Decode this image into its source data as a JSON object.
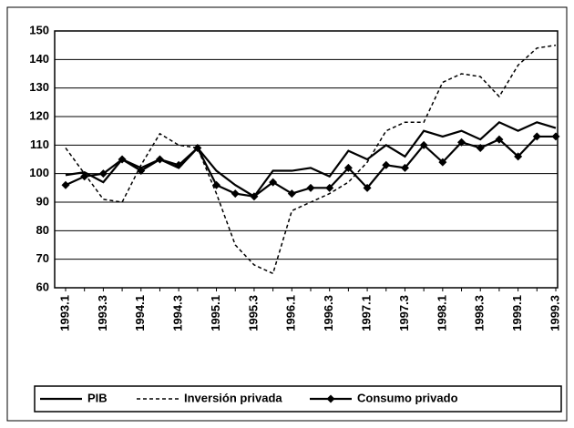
{
  "chart_data": {
    "type": "line",
    "categories": [
      "1993.1",
      null,
      "1993.3",
      null,
      "1994.1",
      null,
      "1994.3",
      null,
      "1995.1",
      null,
      "1995.3",
      null,
      "1996.1",
      null,
      "1996.3",
      null,
      "1997.1",
      null,
      "1997.3",
      null,
      "1998.1",
      null,
      "1998.3",
      null,
      "1999.1",
      null,
      "1999.3"
    ],
    "series": [
      {
        "name": "PIB",
        "color": "#000000",
        "style": "solid",
        "marker": "none",
        "values": [
          99.5,
          100.5,
          97,
          105,
          102,
          105,
          102,
          109,
          101,
          96,
          92,
          101,
          101,
          102,
          99,
          108,
          105,
          110,
          106,
          115,
          113,
          115,
          112,
          118,
          115,
          118,
          116
        ]
      },
      {
        "name": "Inversión privada",
        "color": "#000000",
        "style": "dashed",
        "marker": "none",
        "values": [
          109,
          100,
          91,
          90,
          103,
          114,
          110,
          109,
          93,
          75,
          68,
          65,
          87,
          90,
          93,
          97,
          104,
          115,
          118,
          118,
          132,
          135,
          134,
          127,
          138,
          144,
          145
        ]
      },
      {
        "name": "Consumo privado",
        "color": "#000000",
        "style": "solid",
        "marker": "diamond",
        "values": [
          96,
          99,
          100,
          105,
          101,
          105,
          103,
          109,
          96,
          93,
          92,
          97,
          93,
          95,
          95,
          102,
          95,
          103,
          102,
          110,
          104,
          111,
          109,
          112,
          106,
          113,
          113
        ]
      }
    ],
    "ylim": [
      60,
      150
    ],
    "yticks": [
      60,
      70,
      80,
      90,
      100,
      110,
      120,
      130,
      140,
      150
    ],
    "grid": true,
    "legend": "bottom"
  }
}
